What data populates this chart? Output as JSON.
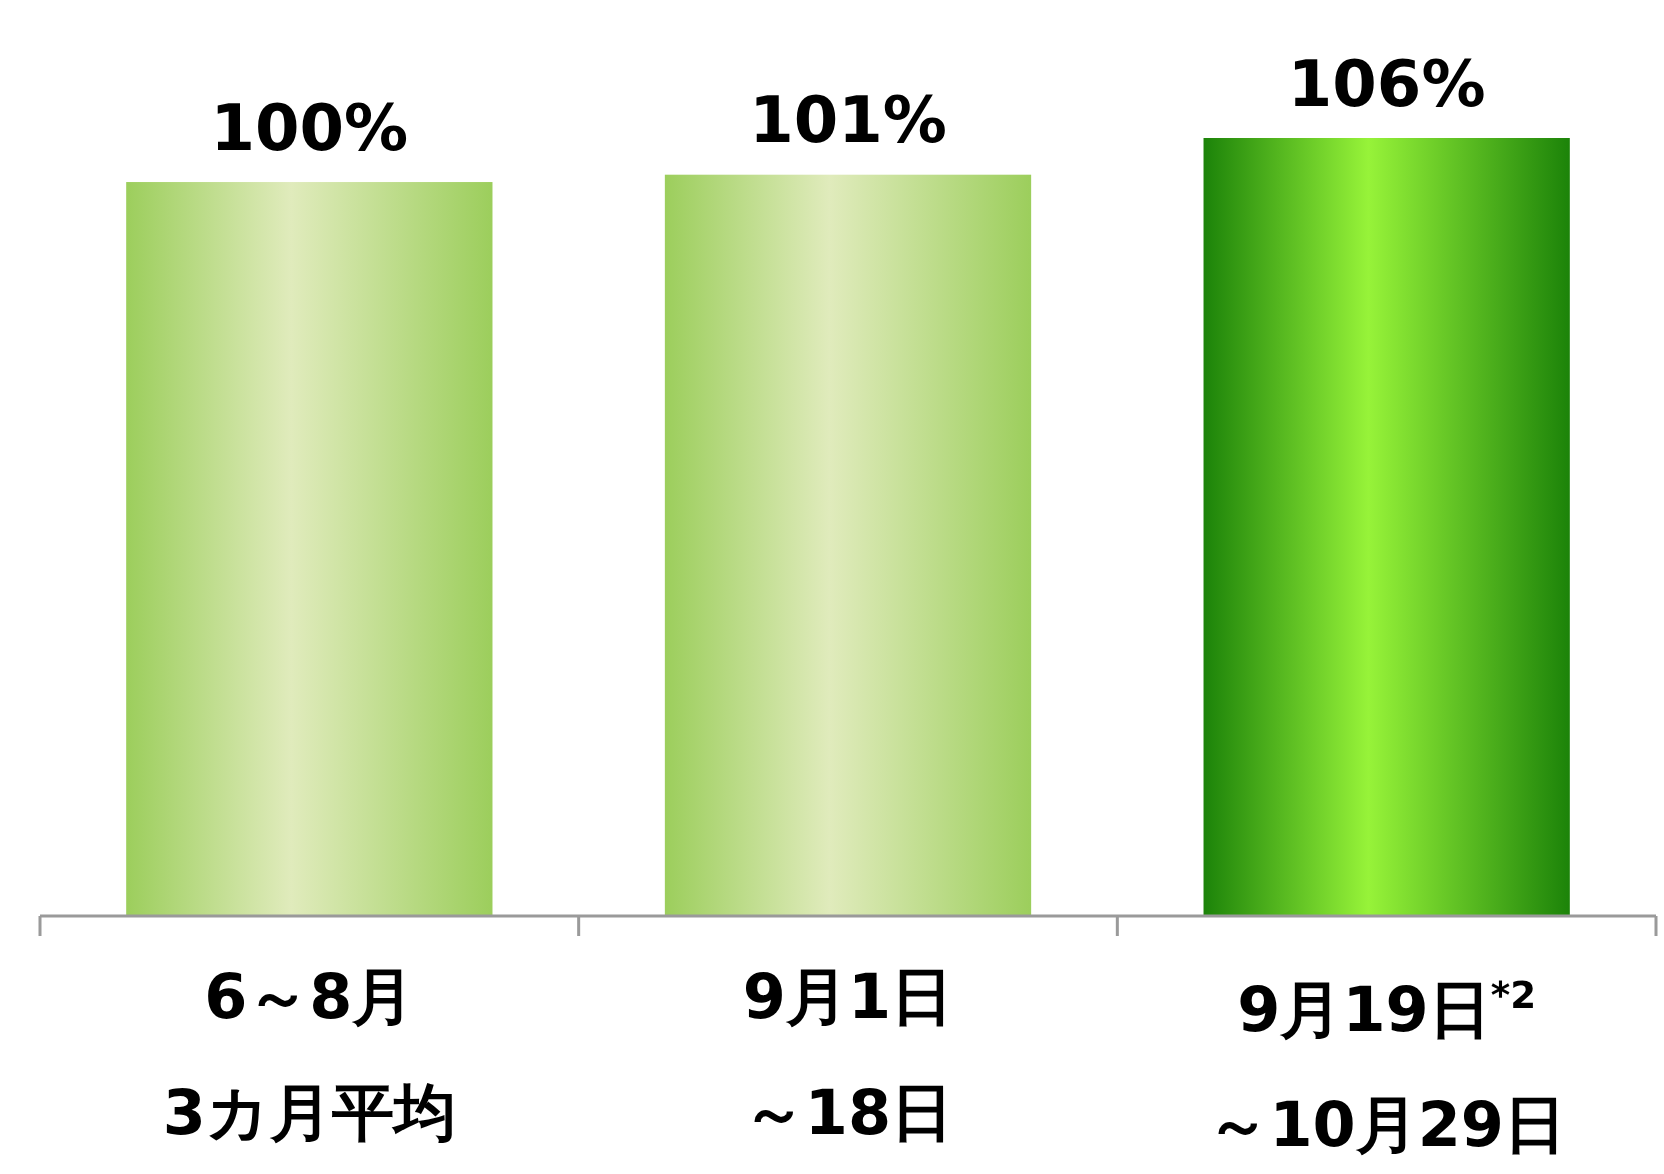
{
  "chart_data": {
    "type": "bar",
    "categories": [
      "6～8月3カ月平均",
      "9月1日～18日",
      "9月19日$^{*2}$～10月29日"
    ],
    "values": [
      100,
      101,
      106
    ],
    "value_labels": [
      "100%",
      "101%",
      "106%"
    ],
    "colors": [
      "#a8d468",
      "#a8d468",
      "#3fae14"
    ],
    "tick_labels": "x"
  }
}
